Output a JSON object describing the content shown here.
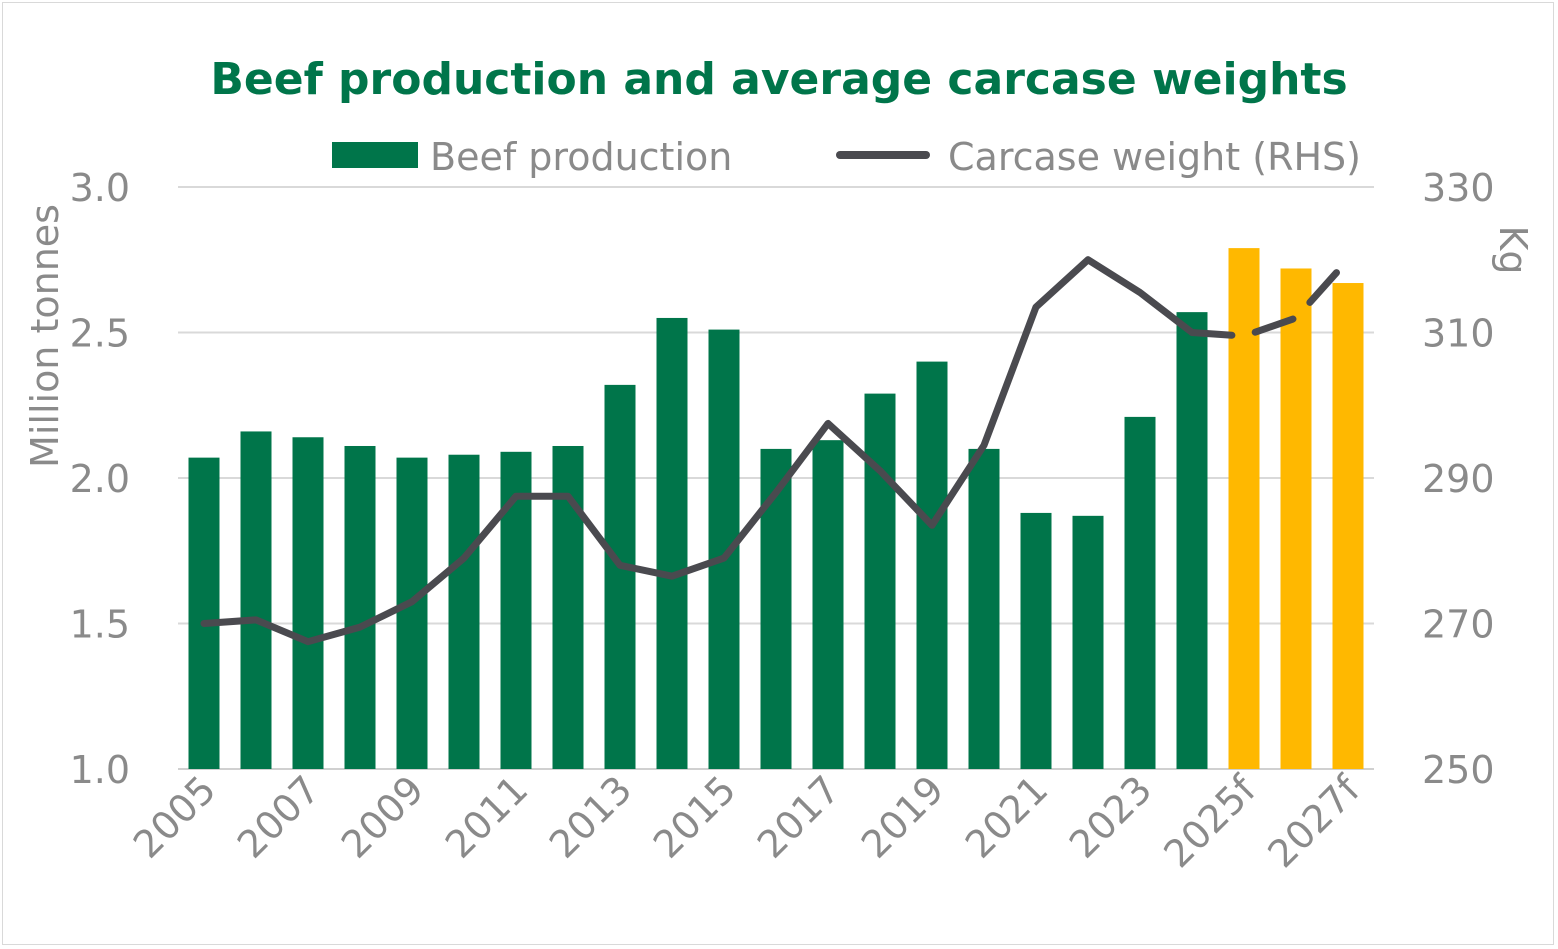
{
  "chart_data": {
    "type": "bar",
    "title": "Beef production and average carcase weights",
    "ylabel": "Million tonnes",
    "y2label": "Kg",
    "ylim": [
      1.0,
      3.0
    ],
    "y2lim": [
      250,
      330
    ],
    "yticks": [
      "1.0",
      "1.5",
      "2.0",
      "2.5",
      "3.0"
    ],
    "y2ticks": [
      "250",
      "270",
      "290",
      "310",
      "330"
    ],
    "grid": true,
    "legend_position": "top",
    "categories": [
      "2005",
      "2006",
      "2007",
      "2008",
      "2009",
      "2010",
      "2011",
      "2012",
      "2013",
      "2014",
      "2015",
      "2016",
      "2017",
      "2018",
      "2019",
      "2020",
      "2021",
      "2022",
      "2023",
      "2024",
      "2025f",
      "2026f",
      "2027f"
    ],
    "x_tick_labels": [
      "2005",
      "2007",
      "2009",
      "2011",
      "2013",
      "2015",
      "2017",
      "2019",
      "2021",
      "2023",
      "2025f",
      "2027f"
    ],
    "series": [
      {
        "name": "Beef production",
        "type": "bar",
        "axis": "left",
        "color": "#00754a",
        "forecast_color": "#ffb800",
        "forecast_from_index": 20,
        "values": [
          2.07,
          2.16,
          2.14,
          2.11,
          2.07,
          2.08,
          2.09,
          2.11,
          2.32,
          2.55,
          2.51,
          2.1,
          2.13,
          2.29,
          2.4,
          2.1,
          1.88,
          1.87,
          2.21,
          2.57,
          2.79,
          2.72,
          2.67
        ]
      },
      {
        "name": "Carcase weight (RHS)",
        "type": "line",
        "axis": "right",
        "color": "#4a4a4f",
        "dashed_from_index": 19,
        "values": [
          270,
          270.5,
          267.5,
          269.5,
          273,
          279,
          287.5,
          287.5,
          278,
          276.5,
          279,
          288,
          297.5,
          291,
          283.5,
          294.5,
          313.5,
          320,
          315.5,
          310,
          309.5,
          312,
          320
        ]
      }
    ]
  }
}
